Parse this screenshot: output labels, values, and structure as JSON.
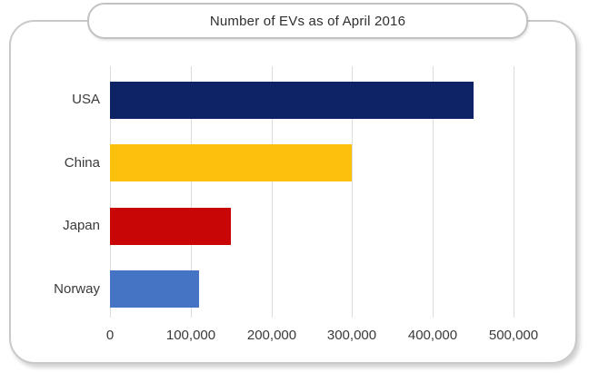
{
  "chart_data": {
    "type": "bar",
    "orientation": "horizontal",
    "title": "Number of EVs as of April 2016",
    "categories": [
      "USA",
      "China",
      "Japan",
      "Norway"
    ],
    "values": [
      450000,
      300000,
      150000,
      110000
    ],
    "bar_colors": [
      "#0d2366",
      "#fdc00d",
      "#c90606",
      "#4674c4"
    ],
    "xlabel": "",
    "ylabel": "",
    "xlim": [
      0,
      500000
    ],
    "x_tick_values": [
      0,
      100000,
      200000,
      300000,
      400000,
      500000
    ],
    "x_tick_labels": [
      "0",
      "100,000",
      "200,000",
      "300,000",
      "400,000",
      "500,000"
    ],
    "grid": "vertical",
    "legend": "none"
  },
  "colors": {
    "gridline": "#dcdcdc",
    "card_border": "#c9c9c9",
    "title_border": "#c2c2c2",
    "text": "#3a3a3a"
  }
}
